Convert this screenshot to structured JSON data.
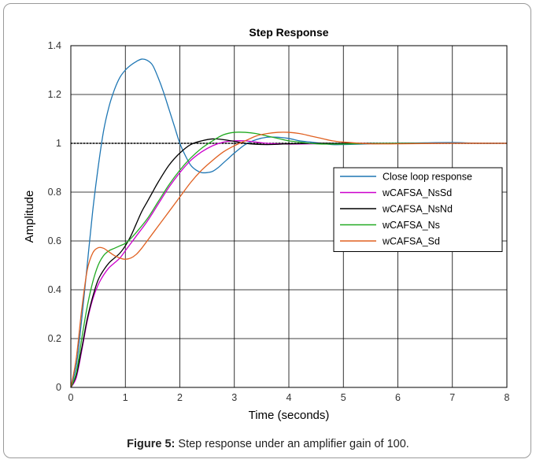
{
  "caption": {
    "label": "Figure 5:",
    "text": "Step response under an amplifier gain of 100."
  },
  "chart_data": {
    "type": "line",
    "title": "Step Response",
    "xlabel": "Time (seconds)",
    "ylabel": "Amplitude",
    "xlim": [
      0,
      8
    ],
    "ylim": [
      0,
      1.4
    ],
    "xticks": [
      0,
      1,
      2,
      3,
      4,
      5,
      6,
      7,
      8
    ],
    "yticks": [
      0,
      0.2,
      0.4,
      0.6,
      0.8,
      1,
      1.2,
      1.4
    ],
    "grid": true,
    "legend_position": "right",
    "reference_line": {
      "y": 1,
      "style": "dotted",
      "color": "#000000"
    },
    "series": [
      {
        "name": "Close loop response",
        "color": "#1f77b4",
        "x": [
          0,
          0.1,
          0.2,
          0.3,
          0.4,
          0.5,
          0.6,
          0.7,
          0.8,
          0.9,
          1.0,
          1.1,
          1.2,
          1.3,
          1.4,
          1.5,
          1.6,
          1.7,
          1.8,
          1.9,
          2.0,
          2.1,
          2.2,
          2.3,
          2.4,
          2.5,
          2.6,
          2.7,
          2.8,
          2.9,
          3.0,
          3.2,
          3.4,
          3.6,
          3.8,
          4.0,
          4.2,
          4.4,
          4.6,
          4.8,
          5.0,
          5.5,
          6.0,
          6.5,
          7.0,
          7.5,
          8.0
        ],
        "y": [
          0,
          0.09,
          0.28,
          0.5,
          0.72,
          0.9,
          1.05,
          1.15,
          1.22,
          1.27,
          1.3,
          1.32,
          1.335,
          1.345,
          1.34,
          1.32,
          1.27,
          1.21,
          1.14,
          1.07,
          1.0,
          0.95,
          0.91,
          0.89,
          0.88,
          0.88,
          0.885,
          0.9,
          0.92,
          0.94,
          0.96,
          0.995,
          1.015,
          1.025,
          1.025,
          1.02,
          1.01,
          1.005,
          1.0,
          0.995,
          0.995,
          0.998,
          1.0,
          1.002,
          1.003,
          1.0,
          1.0
        ]
      },
      {
        "name": "wCAFSA_NsSd",
        "color": "#cc00cc",
        "x": [
          0,
          0.1,
          0.2,
          0.3,
          0.4,
          0.5,
          0.6,
          0.7,
          0.8,
          0.9,
          1.0,
          1.1,
          1.2,
          1.4,
          1.6,
          1.8,
          2.0,
          2.2,
          2.4,
          2.6,
          2.8,
          3.0,
          3.2,
          3.4,
          3.6,
          3.8,
          4.0,
          4.5,
          5.0,
          6.0,
          7.0,
          8.0
        ],
        "y": [
          0,
          0.04,
          0.15,
          0.27,
          0.36,
          0.42,
          0.46,
          0.49,
          0.51,
          0.53,
          0.56,
          0.59,
          0.62,
          0.68,
          0.75,
          0.82,
          0.88,
          0.93,
          0.965,
          0.99,
          1.005,
          1.01,
          1.01,
          1.005,
          1.0,
          0.998,
          0.997,
          0.998,
          1.0,
          1.0,
          1.0,
          1.0
        ]
      },
      {
        "name": "wCAFSA_NsNd",
        "color": "#000000",
        "x": [
          0,
          0.1,
          0.2,
          0.3,
          0.4,
          0.5,
          0.6,
          0.7,
          0.8,
          0.9,
          1.0,
          1.1,
          1.2,
          1.3,
          1.4,
          1.5,
          1.6,
          1.8,
          2.0,
          2.2,
          2.4,
          2.6,
          2.8,
          3.0,
          3.2,
          3.4,
          3.6,
          3.8,
          4.0,
          4.5,
          5.0,
          5.5,
          6.0,
          6.3
        ],
        "y": [
          0,
          0.05,
          0.16,
          0.28,
          0.37,
          0.44,
          0.48,
          0.51,
          0.53,
          0.55,
          0.58,
          0.62,
          0.67,
          0.72,
          0.76,
          0.8,
          0.84,
          0.91,
          0.96,
          0.995,
          1.01,
          1.018,
          1.015,
          1.008,
          1.0,
          0.996,
          0.995,
          0.996,
          0.998,
          1.0,
          1.0,
          1.0,
          1.0,
          1.0
        ]
      },
      {
        "name": "wCAFSA_Ns",
        "color": "#22aa22",
        "x": [
          0,
          0.1,
          0.2,
          0.3,
          0.4,
          0.5,
          0.6,
          0.7,
          0.8,
          0.9,
          1.0,
          1.1,
          1.2,
          1.4,
          1.6,
          1.8,
          2.0,
          2.2,
          2.4,
          2.6,
          2.8,
          3.0,
          3.2,
          3.4,
          3.6,
          3.8,
          4.0,
          4.2,
          4.4,
          4.6,
          5.0,
          5.5,
          6.0,
          7.0,
          8.0
        ],
        "y": [
          0,
          0.06,
          0.2,
          0.33,
          0.43,
          0.5,
          0.54,
          0.56,
          0.57,
          0.58,
          0.59,
          0.61,
          0.635,
          0.69,
          0.76,
          0.83,
          0.89,
          0.94,
          0.98,
          1.01,
          1.035,
          1.045,
          1.045,
          1.04,
          1.03,
          1.02,
          1.01,
          1.005,
          1.0,
          0.997,
          0.997,
          0.999,
          1.0,
          1.0,
          1.0
        ]
      },
      {
        "name": "wCAFSA_Sd",
        "color": "#e06020",
        "x": [
          0,
          0.1,
          0.2,
          0.3,
          0.4,
          0.5,
          0.6,
          0.7,
          0.8,
          0.9,
          1.0,
          1.1,
          1.2,
          1.3,
          1.4,
          1.6,
          1.8,
          2.0,
          2.2,
          2.4,
          2.6,
          2.8,
          3.0,
          3.2,
          3.4,
          3.6,
          3.8,
          4.0,
          4.2,
          4.4,
          4.6,
          4.8,
          5.0,
          5.5,
          6.0,
          7.0,
          8.0
        ],
        "y": [
          0,
          0.12,
          0.32,
          0.48,
          0.55,
          0.572,
          0.57,
          0.555,
          0.54,
          0.53,
          0.525,
          0.53,
          0.545,
          0.57,
          0.6,
          0.66,
          0.72,
          0.78,
          0.84,
          0.89,
          0.93,
          0.965,
          0.99,
          1.01,
          1.03,
          1.04,
          1.045,
          1.045,
          1.04,
          1.03,
          1.02,
          1.01,
          1.005,
          0.998,
          0.998,
          1.0,
          1.0
        ]
      }
    ]
  }
}
